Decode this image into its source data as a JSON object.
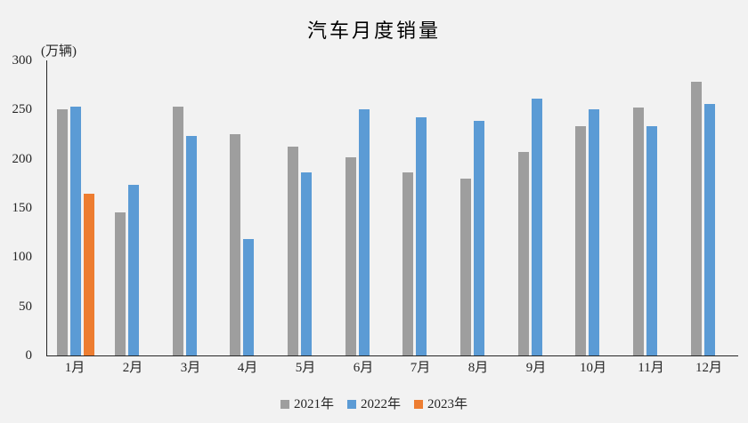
{
  "chart_data": {
    "type": "bar",
    "title": "汽车月度销量",
    "unit_label": "(万辆)",
    "categories": [
      "1月",
      "2月",
      "3月",
      "4月",
      "5月",
      "6月",
      "7月",
      "8月",
      "9月",
      "10月",
      "11月",
      "12月"
    ],
    "series": [
      {
        "name": "2021年",
        "color": "#9E9E9E",
        "values": [
          250.3,
          145.5,
          252.6,
          225.2,
          212.8,
          201.5,
          186.4,
          179.9,
          206.7,
          233.3,
          252.2,
          278.6
        ]
      },
      {
        "name": "2022年",
        "color": "#5B9BD5",
        "values": [
          253.1,
          173.7,
          223.4,
          118.1,
          186.2,
          250.2,
          242.0,
          238.3,
          261.0,
          250.5,
          232.8,
          255.6
        ]
      },
      {
        "name": "2023年",
        "color": "#ED7D31",
        "values": [
          164.9,
          null,
          null,
          null,
          null,
          null,
          null,
          null,
          null,
          null,
          null,
          null
        ]
      }
    ],
    "ylim": [
      0,
      300
    ],
    "yticks": [
      0,
      50,
      100,
      150,
      200,
      250,
      300
    ],
    "grid": false,
    "legend_position": "bottom",
    "background_color": "#F2F2F2",
    "axis_color": "#262626"
  }
}
